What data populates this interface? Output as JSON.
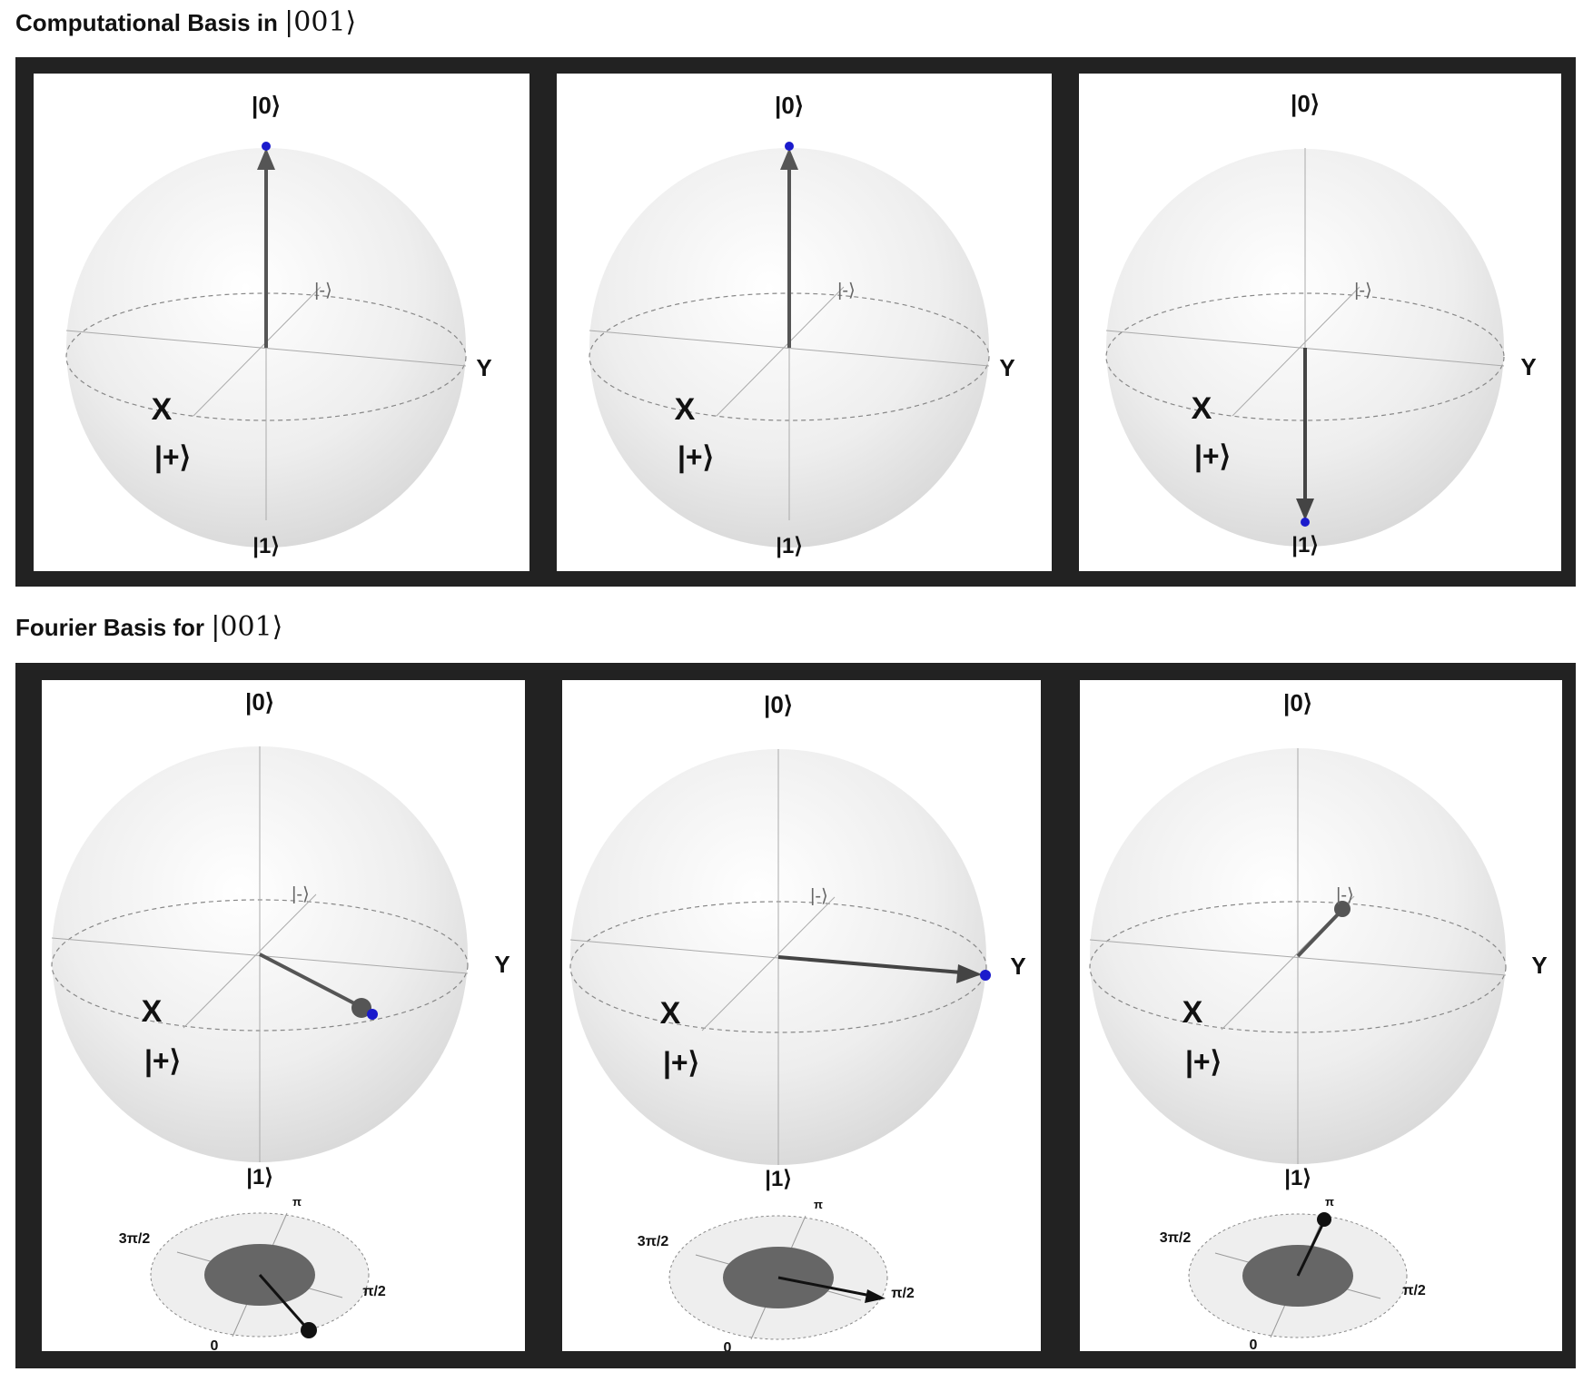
{
  "sections": [
    {
      "title": "Computational Basis in",
      "title_ket": "|001⟩",
      "cards": [
        {
          "labels": {
            "top": "|0⟩",
            "bottom": "|1⟩",
            "x": "X",
            "y": "Y",
            "plus": "|+⟩",
            "minus": "|-⟩"
          },
          "state": "|0⟩"
        },
        {
          "labels": {
            "top": "|0⟩",
            "bottom": "|1⟩",
            "x": "X",
            "y": "Y",
            "plus": "|+⟩",
            "minus": "|-⟩"
          },
          "state": "|0⟩"
        },
        {
          "labels": {
            "top": "|0⟩",
            "bottom": "|1⟩",
            "x": "X",
            "y": "Y",
            "plus": "|+⟩",
            "minus": "|-⟩"
          },
          "state": "|1⟩"
        }
      ]
    },
    {
      "title": "Fourier Basis for",
      "title_ket": "|001⟩",
      "cards": [
        {
          "labels": {
            "top": "|0⟩",
            "bottom": "|1⟩",
            "x": "X",
            "y": "Y",
            "plus": "|+⟩",
            "minus": "|-⟩"
          },
          "phase_labels": {
            "pi": "π",
            "three_pi_2": "3π/2",
            "pi_2": "π/2",
            "zero": "0"
          }
        },
        {
          "labels": {
            "top": "|0⟩",
            "bottom": "|1⟩",
            "x": "X",
            "y": "Y",
            "plus": "|+⟩",
            "minus": "|-⟩"
          },
          "phase_labels": {
            "pi": "π",
            "three_pi_2": "3π/2",
            "pi_2": "π/2",
            "zero": "0"
          }
        },
        {
          "labels": {
            "top": "|0⟩",
            "bottom": "|1⟩",
            "x": "X",
            "y": "Y",
            "plus": "|+⟩",
            "minus": "|-⟩"
          },
          "phase_labels": {
            "pi": "π",
            "three_pi_2": "3π/2",
            "pi_2": "π/2",
            "zero": "0"
          }
        }
      ]
    }
  ],
  "colors": {
    "frame": "#222222",
    "vector": "#555555",
    "tip": "#1a1acc",
    "phase_disk": "#666666",
    "phase_vector": "#111111"
  }
}
